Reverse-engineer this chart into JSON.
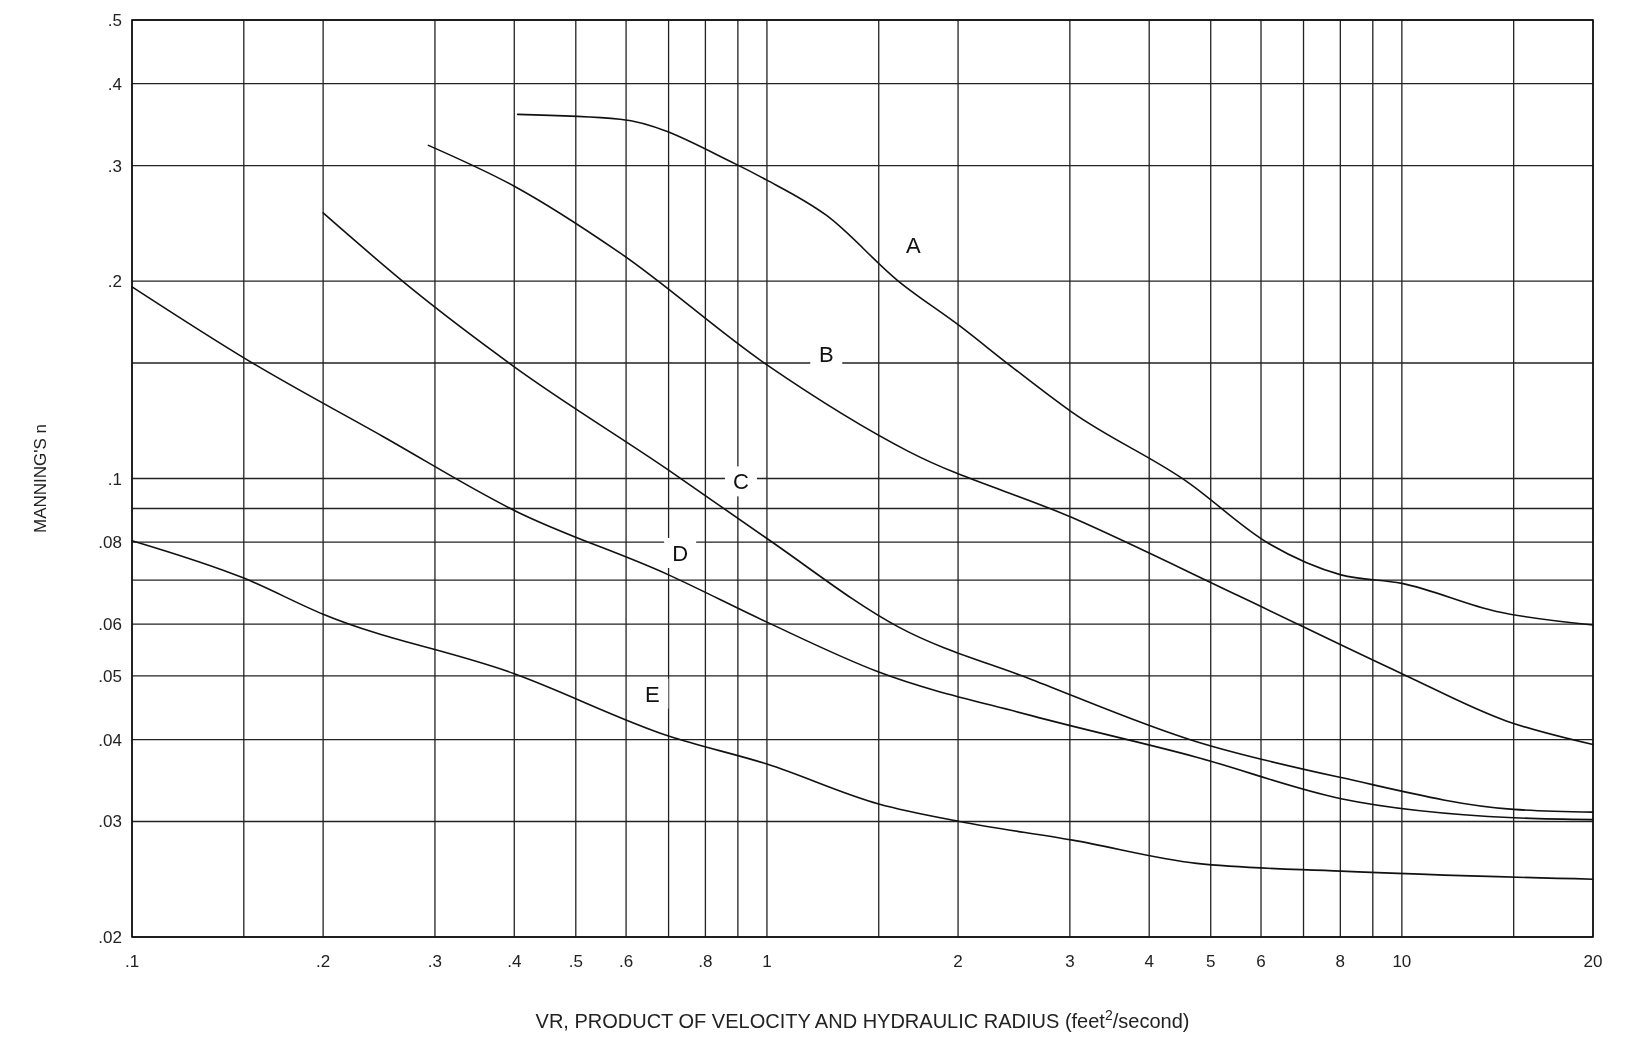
{
  "chart_data": {
    "type": "line",
    "xlabel": "VR, PRODUCT OF VELOCITY AND HYDRAULIC RADIUS  (feet$^{2}$/second)",
    "ylabel": "MANNING'S n",
    "log": "xy",
    "grid": true,
    "line_style": "solid",
    "xlim": [
      0.1,
      20
    ],
    "ylim": [
      0.02,
      0.5
    ],
    "xticks": [
      {
        "value": 0.1,
        "label": ".1"
      },
      {
        "value": 0.15,
        "label": null
      },
      {
        "value": 0.2,
        "label": ".2"
      },
      {
        "value": 0.3,
        "label": ".3"
      },
      {
        "value": 0.4,
        "label": ".4"
      },
      {
        "value": 0.5,
        "label": ".5"
      },
      {
        "value": 0.6,
        "label": ".6"
      },
      {
        "value": 0.7,
        "label": null
      },
      {
        "value": 0.8,
        "label": ".8"
      },
      {
        "value": 0.9,
        "label": null
      },
      1,
      {
        "value": 1.5,
        "label": null
      },
      2,
      3,
      4,
      5,
      6,
      {
        "value": 7,
        "label": null
      },
      8,
      {
        "value": 9,
        "label": null
      },
      10,
      {
        "value": 15,
        "label": null
      },
      20
    ],
    "yticks": [
      {
        "value": 0.02,
        "label": ".02"
      },
      {
        "value": 0.03,
        "label": ".03"
      },
      {
        "value": 0.04,
        "label": ".04"
      },
      {
        "value": 0.05,
        "label": ".05"
      },
      {
        "value": 0.06,
        "label": ".06"
      },
      {
        "value": 0.07,
        "label": null
      },
      {
        "value": 0.08,
        "label": ".08"
      },
      {
        "value": 0.09,
        "label": null
      },
      {
        "value": 0.1,
        "label": ".1"
      },
      {
        "value": 0.15,
        "label": null
      },
      {
        "value": 0.2,
        "label": ".2"
      },
      {
        "value": 0.3,
        "label": ".3"
      },
      {
        "value": 0.4,
        "label": ".4"
      },
      {
        "value": 0.5,
        "label": ".5"
      }
    ],
    "series": [
      {
        "color": "#111111",
        "x": [
          0.405,
          0.587,
          0.89,
          1,
          1.24,
          1.61,
          2.01,
          2.43,
          3.03,
          4.58,
          6.17,
          8.02,
          10,
          14.1,
          20
        ],
        "values": [
          0.359,
          0.353,
          0.302,
          0.285,
          0.252,
          0.2,
          0.171,
          0.148,
          0.126,
          0.099,
          0.0796,
          0.0713,
          0.0692,
          0.0627,
          0.0598
        ]
      },
      {
        "color": "#111111",
        "x": [
          0.293,
          0.4,
          0.586,
          1,
          1.67,
          3.03,
          5.52,
          10,
          14.6,
          20
        ],
        "values": [
          0.322,
          0.279,
          0.221,
          0.149,
          0.11,
          0.0871,
          0.0663,
          0.0504,
          0.0427,
          0.0393
        ]
      },
      {
        "color": "#111111",
        "x": [
          0.2,
          0.277,
          0.4,
          0.7,
          1,
          1.61,
          2.61,
          4.75,
          8.02,
          15,
          20
        ],
        "values": [
          0.254,
          0.194,
          0.148,
          0.103,
          0.081,
          0.0594,
          0.0494,
          0.0397,
          0.035,
          0.0313,
          0.031
        ]
      },
      {
        "color": "#111111",
        "x": [
          0.1,
          0.153,
          0.248,
          0.4,
          0.7,
          1,
          1.5,
          2.61,
          4.75,
          8.02,
          15,
          20
        ],
        "values": [
          0.196,
          0.151,
          0.116,
          0.0894,
          0.0713,
          0.0604,
          0.0507,
          0.0435,
          0.0376,
          0.0325,
          0.0304,
          0.0302
        ]
      },
      {
        "color": "#111111",
        "x": [
          0.1,
          0.15,
          0.2,
          0.4,
          0.7,
          1,
          1.5,
          2.01,
          3.03,
          4.75,
          8.02,
          20
        ],
        "values": [
          0.0804,
          0.0705,
          0.0621,
          0.0504,
          0.0405,
          0.0367,
          0.0319,
          0.03,
          0.0281,
          0.0259,
          0.0252,
          0.0245
        ]
      }
    ],
    "annotations": [
      {
        "text": "A",
        "x": 1.7,
        "y": 0.227
      },
      {
        "text": "B",
        "x": 1.24,
        "y": 0.155
      },
      {
        "text": "C",
        "x": 0.91,
        "y": 0.099
      },
      {
        "text": "D",
        "x": 0.73,
        "y": 0.077
      },
      {
        "text": "E",
        "x": 0.66,
        "y": 0.047
      }
    ]
  }
}
